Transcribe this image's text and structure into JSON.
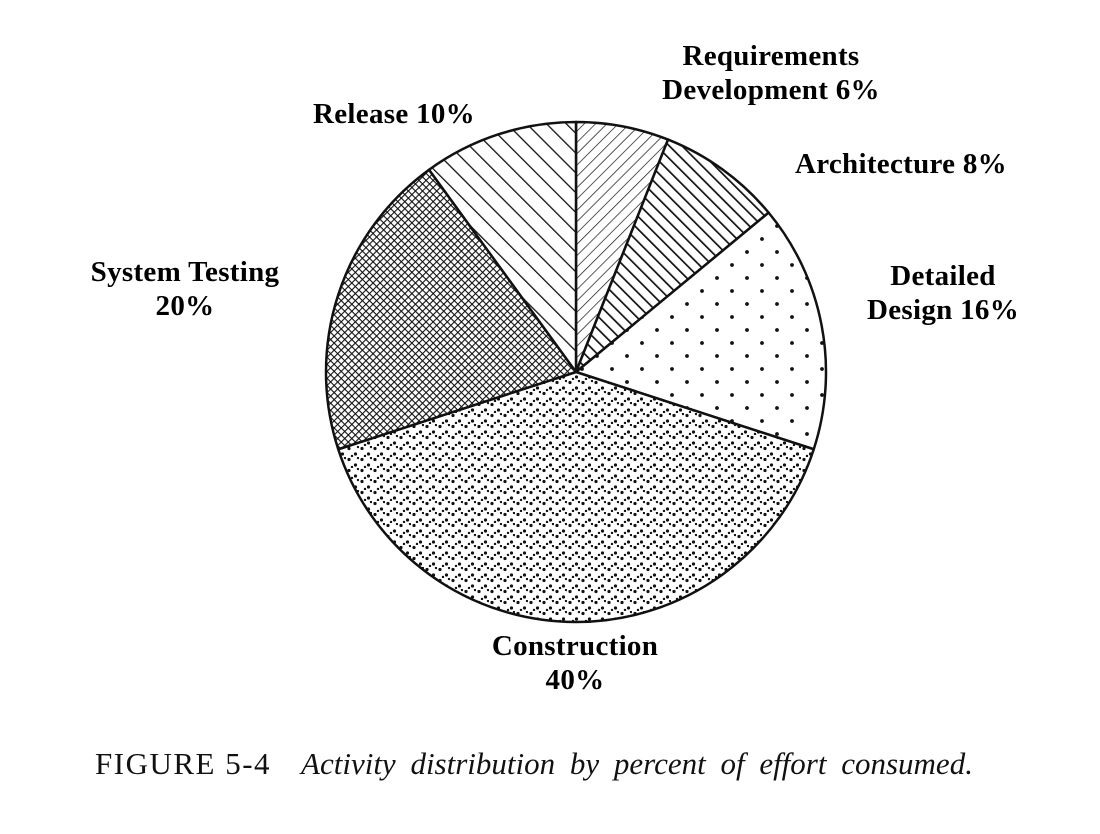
{
  "figure": {
    "number": "FIGURE 5-4",
    "caption": "Activity distribution by percent of effort consumed."
  },
  "chart_data": {
    "type": "pie",
    "title": "Activity distribution by percent of effort consumed",
    "units": "percent",
    "start_angle_deg": 0,
    "direction": "clockwise",
    "legend": "none (labels placed around pie)",
    "categories": [
      "Requirements Development",
      "Architecture",
      "Detailed Design",
      "Construction",
      "System Testing",
      "Release"
    ],
    "values": [
      6,
      8,
      16,
      40,
      20,
      10
    ],
    "colors": {
      "ink": "#111111",
      "paper": "#ffffff"
    },
    "slices": [
      {
        "label": "Requirements Development",
        "value": 6,
        "pattern": "hatch-thin",
        "label_lines": [
          "Requirements",
          "Development 6%"
        ]
      },
      {
        "label": "Architecture",
        "value": 8,
        "pattern": "hatch-bold",
        "label_lines": [
          "Architecture 8%"
        ]
      },
      {
        "label": "Detailed Design",
        "value": 16,
        "pattern": "dots-sparse",
        "label_lines": [
          "Detailed",
          "Design 16%"
        ]
      },
      {
        "label": "Construction",
        "value": 40,
        "pattern": "dots-dense",
        "label_lines": [
          "Construction",
          "40%"
        ]
      },
      {
        "label": "System Testing",
        "value": 20,
        "pattern": "crosshatch-dark",
        "label_lines": [
          "System Testing",
          "20%"
        ]
      },
      {
        "label": "Release",
        "value": 10,
        "pattern": "stripes-wide",
        "label_lines": [
          "Release 10%"
        ]
      }
    ]
  }
}
